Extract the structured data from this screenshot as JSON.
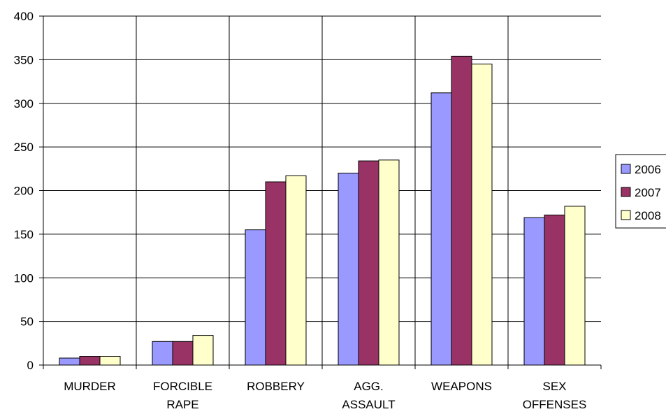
{
  "chart_data": {
    "type": "bar",
    "categories": [
      [
        "MURDER"
      ],
      [
        "FORCIBLE",
        "RAPE"
      ],
      [
        "ROBBERY"
      ],
      [
        "AGG.",
        "ASSAULT"
      ],
      [
        "WEAPONS"
      ],
      [
        "SEX",
        "OFFENSES"
      ]
    ],
    "series": [
      {
        "name": "2006",
        "color": "#9999FF",
        "values": [
          8,
          27,
          155,
          220,
          312,
          169
        ]
      },
      {
        "name": "2007",
        "color": "#993366",
        "values": [
          10,
          27,
          210,
          234,
          354,
          172
        ]
      },
      {
        "name": "2008",
        "color": "#FFFFCC",
        "values": [
          10,
          34,
          217,
          235,
          345,
          182
        ]
      }
    ],
    "ylim": [
      0,
      400
    ],
    "yticks": [
      "0",
      "50",
      "100",
      "150",
      "200",
      "250",
      "300",
      "350",
      "400"
    ],
    "grid": true,
    "legend": "right",
    "title": "",
    "xlabel": "",
    "ylabel": ""
  }
}
